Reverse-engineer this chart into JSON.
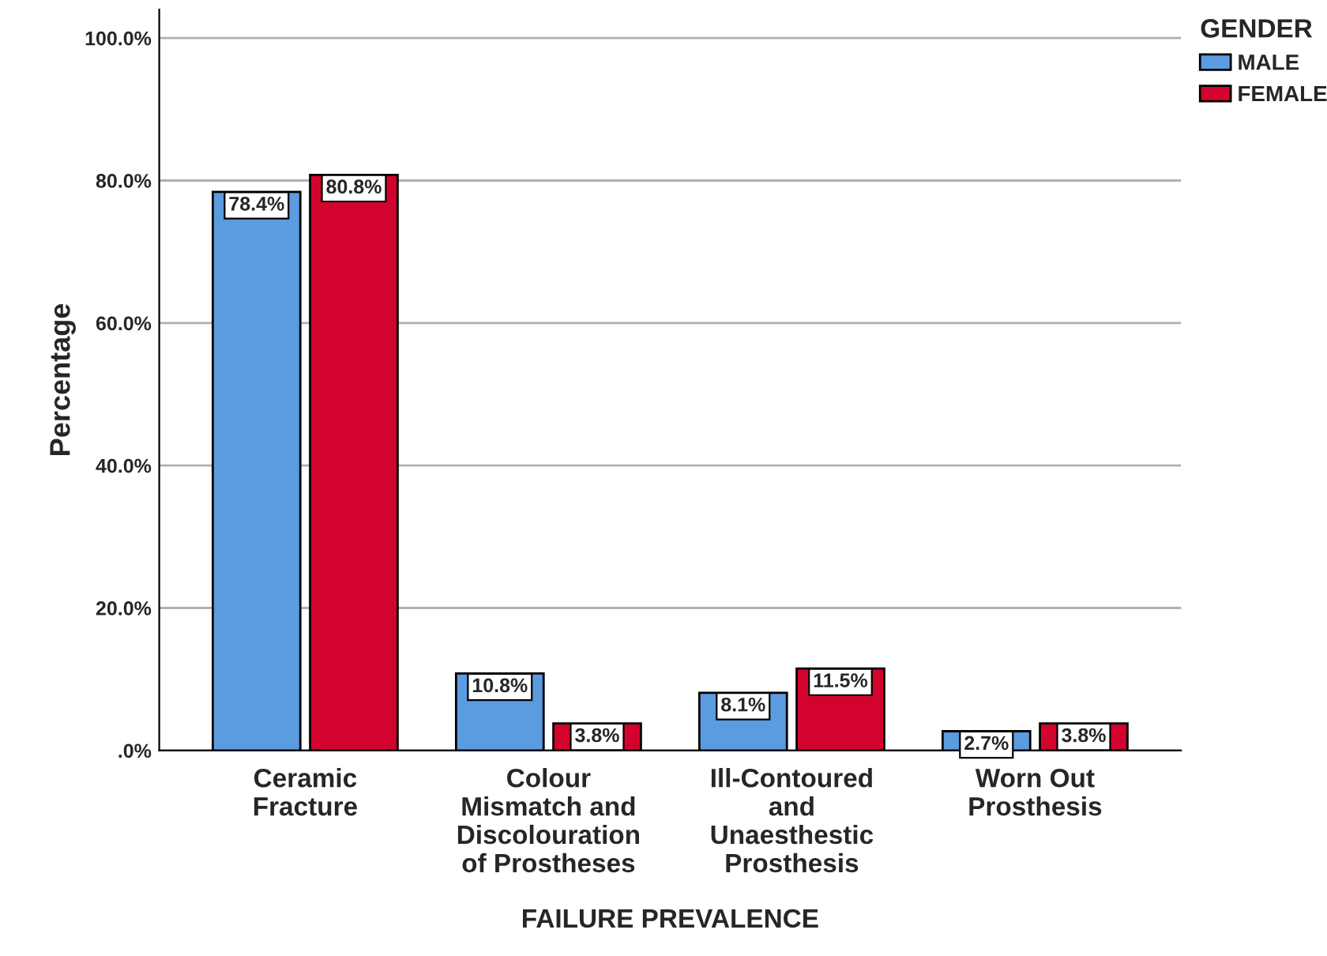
{
  "chart_data": {
    "type": "bar",
    "xlabel": "FAILURE PREVALENCE",
    "ylabel": "Percentage",
    "legend_title": "GENDER",
    "categories": [
      "Ceramic\nFracture",
      "Colour\nMismatch and\nDiscolouration\nof Prostheses",
      "Ill-Contoured\nand\nUnaesthestic\nProsthesis",
      "Worn Out\nProsthesis"
    ],
    "series": [
      {
        "name": "MALE",
        "color": "#5b9be0",
        "values": [
          78.4,
          10.8,
          8.1,
          2.7
        ],
        "value_labels": [
          "78.4%",
          "10.8%",
          "8.1%",
          "2.7%"
        ]
      },
      {
        "name": "FEMALE",
        "color": "#d2042d",
        "values": [
          80.8,
          3.8,
          11.5,
          3.8
        ],
        "value_labels": [
          "80.8%",
          "3.8%",
          "11.5%",
          "3.8%"
        ]
      }
    ],
    "ylim": [
      0,
      104
    ],
    "yticks": [
      {
        "value": 0,
        "label": ".0%"
      },
      {
        "value": 20,
        "label": "20.0%"
      },
      {
        "value": 40,
        "label": "40.0%"
      },
      {
        "value": 60,
        "label": "60.0%"
      },
      {
        "value": 80,
        "label": "80.0%"
      },
      {
        "value": 100,
        "label": "100.0%"
      }
    ],
    "grid": "y",
    "legend": "top right"
  }
}
